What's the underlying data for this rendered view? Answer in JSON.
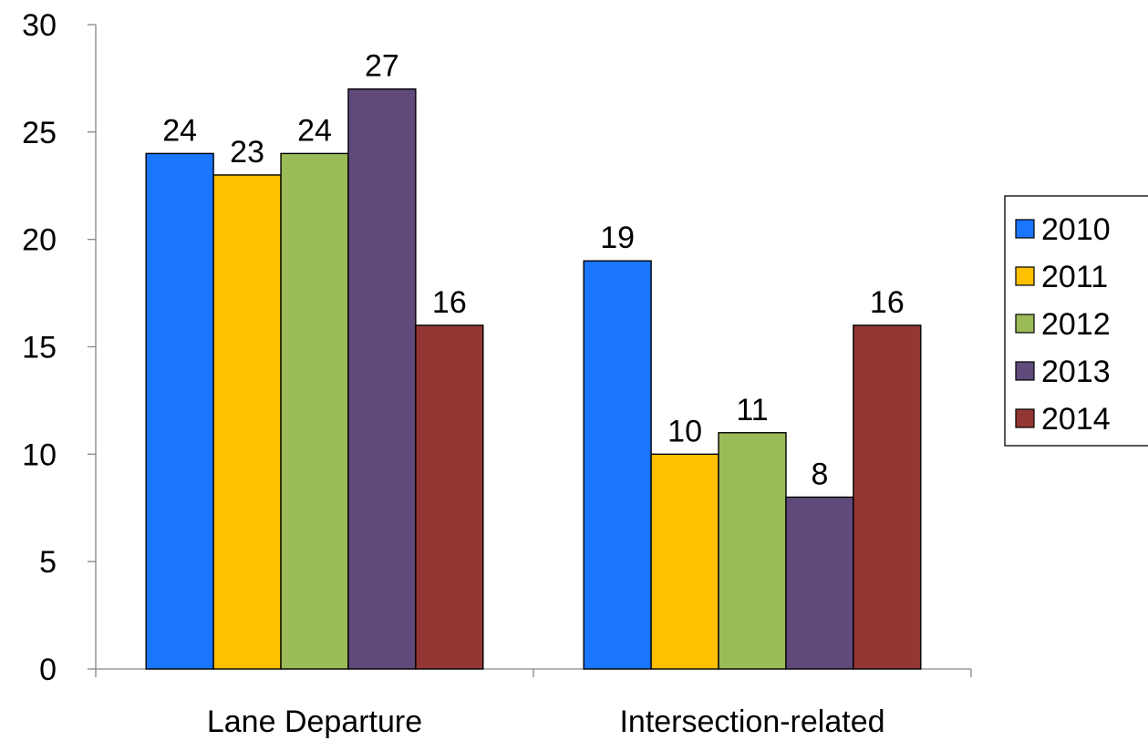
{
  "chart_data": {
    "type": "bar",
    "title": "",
    "xlabel": "",
    "ylabel": "",
    "ylim": [
      0,
      30
    ],
    "yticks": [
      0,
      5,
      10,
      15,
      20,
      25,
      30
    ],
    "categories": [
      "Lane Departure",
      "Intersection-related"
    ],
    "series": [
      {
        "name": "2010",
        "color": "#1a75ff",
        "values": [
          24,
          19
        ]
      },
      {
        "name": "2011",
        "color": "#ffc000",
        "values": [
          23,
          10
        ]
      },
      {
        "name": "2012",
        "color": "#9bbb59",
        "values": [
          24,
          11
        ]
      },
      {
        "name": "2013",
        "color": "#604a7b",
        "values": [
          27,
          8
        ]
      },
      {
        "name": "2014",
        "color": "#943634",
        "values": [
          16,
          16
        ]
      }
    ],
    "data_labels": true,
    "grid": false,
    "legend": "right"
  }
}
